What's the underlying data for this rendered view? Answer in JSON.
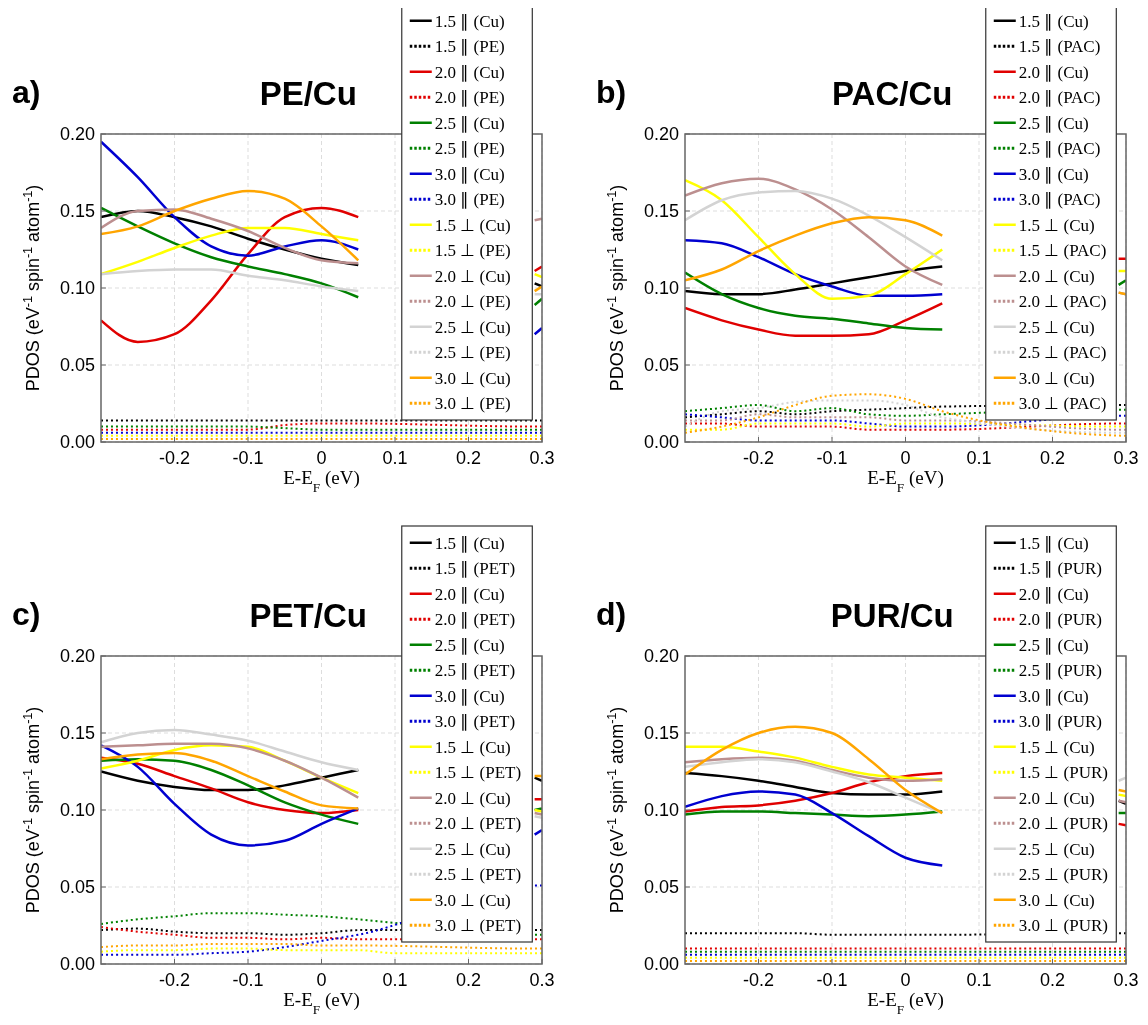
{
  "chart_data": [
    {
      "type": "line",
      "title": "PE/Cu",
      "annotations": [
        "a)"
      ],
      "xlabel": "E-E$_{F}$ (eV)",
      "ylabel": "PDOS (eV$^{-1}$ spin$^{-1}$ atom$^{-1}$)",
      "xlim": [
        -0.3,
        0.3
      ],
      "ylim": [
        0,
        0.2
      ],
      "xticks": [
        -0.2,
        -0.1,
        0,
        0.1,
        0.2,
        0.3
      ],
      "yticks": [
        {
          "value": 0,
          "label": "0.00"
        },
        {
          "value": 0.05,
          "label": "0.05"
        },
        {
          "value": 0.1,
          "label": "0.10"
        },
        {
          "value": 0.15,
          "label": "0.15"
        },
        {
          "value": 0.2,
          "label": "0.20"
        }
      ],
      "grid": true,
      "legend": "top right",
      "x": [
        -0.3,
        -0.25,
        -0.2,
        -0.15,
        -0.1,
        -0.05,
        0,
        0.05,
        0.1,
        0.29,
        0.3
      ],
      "series": [
        {
          "name": "1.5 ∥ (Cu)",
          "color": "#000000",
          "line_style": "solid",
          "values": [
            0.146,
            0.15,
            0.146,
            0.14,
            0.132,
            0.125,
            0.119,
            0.115,
            null,
            0.103,
            0.101
          ]
        },
        {
          "name": "1.5 ∥ (PE)",
          "color": "#000000",
          "line_style": "dotted",
          "x": [
            -0.3,
            -0.25,
            -0.2,
            -0.15,
            -0.1,
            -0.05,
            0,
            0.05,
            0.29,
            0.3
          ],
          "values": [
            0.014,
            0.014,
            0.014,
            0.014,
            0.014,
            0.014,
            0.014,
            0.014,
            0.014,
            0.014
          ]
        },
        {
          "name": "2.0 ∥ (Cu)",
          "color": "#e00000",
          "line_style": "solid",
          "values": [
            0.079,
            0.065,
            0.07,
            0.092,
            0.122,
            0.146,
            0.152,
            0.146,
            null,
            0.111,
            0.114
          ]
        },
        {
          "name": "2.0 ∥ (PE)",
          "color": "#e00000",
          "line_style": "dotted",
          "x": [
            -0.3,
            -0.25,
            -0.2,
            -0.15,
            -0.1,
            -0.05,
            0,
            0.05,
            0.29,
            0.3
          ],
          "values": [
            0.008,
            0.008,
            0.008,
            0.008,
            0.008,
            0.011,
            0.012,
            0.012,
            0.01,
            0.01
          ]
        },
        {
          "name": "2.5 ∥ (Cu)",
          "color": "#008000",
          "line_style": "solid",
          "values": [
            0.152,
            0.14,
            0.129,
            0.12,
            0.114,
            0.109,
            0.103,
            0.094,
            null,
            0.089,
            0.093
          ]
        },
        {
          "name": "2.5 ∥ (PE)",
          "color": "#008000",
          "line_style": "dotted",
          "x": [
            -0.3,
            -0.25,
            -0.2,
            -0.15,
            -0.1,
            -0.05,
            0,
            0.05,
            0.29,
            0.3
          ],
          "values": [
            0.01,
            0.01,
            0.01,
            0.01,
            0.01,
            0.009,
            0.008,
            0.008,
            0.008,
            0.008
          ]
        },
        {
          "name": "3.0 ∥ (Cu)",
          "color": "#0000d0",
          "line_style": "solid",
          "values": [
            0.195,
            0.172,
            0.146,
            0.127,
            0.121,
            0.127,
            0.131,
            0.125,
            null,
            0.07,
            0.074
          ]
        },
        {
          "name": "3.0 ∥ (PE)",
          "color": "#0000d0",
          "line_style": "dotted",
          "x": [
            -0.3,
            -0.25,
            -0.2,
            -0.15,
            -0.1,
            -0.05,
            0,
            0.05,
            0.29,
            0.3
          ],
          "values": [
            0.006,
            0.006,
            0.006,
            0.006,
            0.006,
            0.006,
            0.006,
            0.006,
            0.006,
            0.006
          ]
        },
        {
          "name": "1.5 ⊥ (Cu)",
          "color": "#ffff00",
          "line_style": "solid",
          "values": [
            0.109,
            0.117,
            0.126,
            0.134,
            0.139,
            0.139,
            0.135,
            0.131,
            null,
            0.109,
            0.107
          ]
        },
        {
          "name": "1.5 ⊥ (PE)",
          "color": "#ffff00",
          "line_style": "dotted",
          "x": [
            -0.3,
            -0.25,
            -0.2,
            -0.15,
            -0.1,
            -0.05,
            0,
            0.05,
            0.29,
            0.3
          ],
          "values": [
            0.004,
            0.004,
            0.004,
            0.004,
            0.004,
            0.004,
            0.004,
            0.004,
            0.004,
            0.004
          ]
        },
        {
          "name": "2.0 ⊥ (Cu)",
          "color": "#bc8f8f",
          "line_style": "solid",
          "values": [
            0.139,
            0.15,
            0.151,
            0.145,
            0.137,
            0.126,
            0.118,
            0.116,
            null,
            0.144,
            0.145
          ]
        },
        {
          "name": "2.0 ⊥ (PE)",
          "color": "#bc8f8f",
          "line_style": "dotted",
          "values": [
            null,
            null,
            null,
            null,
            null,
            null,
            null,
            null,
            null,
            null,
            null
          ]
        },
        {
          "name": "2.5 ⊥ (Cu)",
          "color": "#d3d3d3",
          "line_style": "solid",
          "values": [
            0.109,
            0.111,
            0.112,
            0.112,
            0.108,
            0.105,
            0.101,
            0.098,
            null,
            0.096,
            0.096
          ]
        },
        {
          "name": "2.5 ⊥ (PE)",
          "color": "#d3d3d3",
          "line_style": "dotted",
          "values": [
            null,
            null,
            null,
            null,
            null,
            null,
            null,
            null,
            null,
            null,
            null
          ]
        },
        {
          "name": "3.0 ⊥ (Cu)",
          "color": "#ffa500",
          "line_style": "solid",
          "values": [
            0.135,
            0.14,
            0.15,
            0.158,
            0.163,
            0.158,
            0.14,
            0.118,
            null,
            0.098,
            0.101
          ]
        },
        {
          "name": "3.0 ⊥ (PE)",
          "color": "#ffa500",
          "line_style": "dotted",
          "x": [
            -0.3,
            -0.25,
            -0.2,
            -0.15,
            -0.1,
            -0.05,
            0,
            0.05,
            0.29,
            0.3
          ],
          "values": [
            0.002,
            0.002,
            0.002,
            0.002,
            0.002,
            0.002,
            0.002,
            0.002,
            0.002,
            0.002
          ]
        }
      ]
    },
    {
      "type": "line",
      "title": "PAC/Cu",
      "annotations": [
        "b)"
      ],
      "xlabel": "E-E$_{F}$ (eV)",
      "ylabel": "PDOS (eV$^{-1}$ spin$^{-1}$ atom$^{-1}$)",
      "xlim": [
        -0.3,
        0.3
      ],
      "ylim": [
        0,
        0.2
      ],
      "xticks": [
        -0.2,
        -0.1,
        0,
        0.1,
        0.2,
        0.3
      ],
      "yticks": [
        {
          "value": 0,
          "label": "0.00"
        },
        {
          "value": 0.05,
          "label": "0.05"
        },
        {
          "value": 0.1,
          "label": "0.10"
        },
        {
          "value": 0.15,
          "label": "0.15"
        },
        {
          "value": 0.2,
          "label": "0.20"
        }
      ],
      "grid": true,
      "legend": "top right",
      "x": [
        -0.3,
        -0.25,
        -0.2,
        -0.15,
        -0.1,
        -0.05,
        0,
        0.05,
        0.1,
        0.29,
        0.3
      ],
      "series": [
        {
          "name": "1.5 ∥ (Cu)",
          "color": "#000000",
          "line_style": "solid",
          "values": [
            0.098,
            0.096,
            0.096,
            0.099,
            0.103,
            0.107,
            0.111,
            0.114,
            null,
            null,
            null
          ]
        },
        {
          "name": "1.5 ∥ (PAC)",
          "color": "#000000",
          "line_style": "dotted",
          "x": [
            -0.3,
            -0.25,
            -0.2,
            -0.15,
            -0.1,
            -0.05,
            0,
            0.05,
            0.29,
            0.3
          ],
          "values": [
            0.016,
            0.018,
            0.02,
            0.018,
            0.02,
            0.021,
            0.022,
            0.023,
            0.024,
            0.024
          ]
        },
        {
          "name": "2.0 ∥ (Cu)",
          "color": "#e00000",
          "line_style": "solid",
          "values": [
            0.087,
            0.079,
            0.073,
            0.069,
            0.069,
            0.07,
            0.079,
            0.09,
            null,
            0.119,
            0.119
          ]
        },
        {
          "name": "2.0 ∥ (PAC)",
          "color": "#e00000",
          "line_style": "dotted",
          "x": [
            -0.3,
            -0.25,
            -0.2,
            -0.15,
            -0.1,
            -0.05,
            0,
            0.05,
            0.29,
            0.3
          ],
          "values": [
            0.012,
            0.012,
            0.01,
            0.01,
            0.01,
            0.008,
            0.008,
            0.008,
            0.012,
            0.012
          ]
        },
        {
          "name": "2.5 ∥ (Cu)",
          "color": "#008000",
          "line_style": "solid",
          "values": [
            0.11,
            0.096,
            0.087,
            0.082,
            0.08,
            0.077,
            0.074,
            0.073,
            null,
            0.102,
            0.105
          ]
        },
        {
          "name": "2.5 ∥ (PAC)",
          "color": "#008000",
          "line_style": "dotted",
          "x": [
            -0.3,
            -0.25,
            -0.2,
            -0.15,
            -0.1,
            -0.05,
            0,
            0.05,
            0.29,
            0.3
          ],
          "values": [
            0.02,
            0.022,
            0.024,
            0.02,
            0.022,
            0.018,
            0.017,
            0.018,
            0.021,
            0.021
          ]
        },
        {
          "name": "3.0 ∥ (Cu)",
          "color": "#0000d0",
          "line_style": "solid",
          "values": [
            0.131,
            0.129,
            0.12,
            0.109,
            0.101,
            0.095,
            0.095,
            0.096,
            null,
            null,
            null
          ]
        },
        {
          "name": "3.0 ∥ (PAC)",
          "color": "#0000d0",
          "line_style": "dotted",
          "x": [
            -0.3,
            -0.25,
            -0.2,
            -0.15,
            -0.1,
            -0.05,
            0,
            0.05,
            0.29,
            0.3
          ],
          "values": [
            0.018,
            0.016,
            0.014,
            0.014,
            0.014,
            0.012,
            0.01,
            0.01,
            0.017,
            0.017
          ]
        },
        {
          "name": "1.5 ⊥ (Cu)",
          "color": "#ffff00",
          "line_style": "solid",
          "values": [
            0.17,
            0.157,
            0.133,
            0.109,
            0.093,
            0.095,
            0.109,
            0.125,
            null,
            0.111,
            0.111
          ]
        },
        {
          "name": "1.5 ⊥ (PAC)",
          "color": "#ffff00",
          "line_style": "dotted",
          "x": [
            -0.3,
            -0.25,
            -0.2,
            -0.15,
            -0.1,
            -0.05,
            0,
            0.05,
            0.29,
            0.3
          ],
          "values": [
            0.008,
            0.008,
            0.012,
            0.012,
            0.012,
            0.01,
            0.012,
            0.012,
            0.01,
            0.01
          ]
        },
        {
          "name": "2.0 ⊥ (Cu)",
          "color": "#bc8f8f",
          "line_style": "solid",
          "values": [
            0.16,
            0.168,
            0.171,
            0.164,
            0.151,
            0.133,
            0.114,
            0.102,
            null,
            0.097,
            0.096
          ]
        },
        {
          "name": "2.0 ⊥ (PAC)",
          "color": "#bc8f8f",
          "line_style": "dotted",
          "x": [
            -0.3,
            -0.25,
            -0.2,
            -0.15,
            -0.1,
            -0.05,
            0,
            0.05,
            0.29,
            0.3
          ],
          "values": [
            0.014,
            0.014,
            0.018,
            0.016,
            0.016,
            0.016,
            0.014,
            0.014,
            0.008,
            0.008
          ]
        },
        {
          "name": "2.5 ⊥ (Cu)",
          "color": "#d3d3d3",
          "line_style": "solid",
          "values": [
            0.144,
            0.157,
            0.162,
            0.163,
            0.158,
            0.147,
            0.133,
            0.118,
            null,
            null,
            null
          ]
        },
        {
          "name": "2.5 ⊥ (PAC)",
          "color": "#d3d3d3",
          "line_style": "dotted",
          "x": [
            -0.3,
            -0.25,
            -0.2,
            -0.15,
            -0.1,
            -0.05,
            0,
            0.05,
            0.29,
            0.3
          ],
          "values": [
            0.01,
            0.02,
            0.022,
            0.026,
            0.027,
            0.027,
            0.024,
            0.016,
            0.006,
            0.006
          ]
        },
        {
          "name": "3.0 ⊥ (Cu)",
          "color": "#ffa500",
          "line_style": "solid",
          "values": [
            0.105,
            0.112,
            0.124,
            0.134,
            0.142,
            0.146,
            0.144,
            0.134,
            null,
            0.097,
            0.096
          ]
        },
        {
          "name": "3.0 ⊥ (PAC)",
          "color": "#ffa500",
          "line_style": "dotted",
          "x": [
            -0.3,
            -0.25,
            -0.2,
            -0.15,
            -0.1,
            -0.05,
            0,
            0.05,
            0.2,
            0.25,
            0.3
          ],
          "values": [
            0.006,
            0.01,
            0.016,
            0.024,
            0.03,
            0.031,
            0.028,
            0.02,
            0.007,
            0.005,
            0.004
          ]
        }
      ]
    },
    {
      "type": "line",
      "title": "PET/Cu",
      "annotations": [
        "c)"
      ],
      "xlabel": "E-E$_{F}$ (eV)",
      "ylabel": "PDOS (eV$^{-1}$ spin$^{-1}$ atom$^{-1}$)",
      "xlim": [
        -0.3,
        0.3
      ],
      "ylim": [
        0,
        0.2
      ],
      "xticks": [
        -0.2,
        -0.1,
        0,
        0.1,
        0.2,
        0.3
      ],
      "yticks": [
        {
          "value": 0,
          "label": "0.00"
        },
        {
          "value": 0.05,
          "label": "0.05"
        },
        {
          "value": 0.1,
          "label": "0.10"
        },
        {
          "value": 0.15,
          "label": "0.15"
        },
        {
          "value": 0.2,
          "label": "0.20"
        }
      ],
      "grid": true,
      "legend": "top right",
      "x": [
        -0.3,
        -0.25,
        -0.2,
        -0.15,
        -0.1,
        -0.05,
        0,
        0.05,
        0.1,
        0.29,
        0.3
      ],
      "series": [
        {
          "name": "1.5 ∥ (Cu)",
          "color": "#000000",
          "line_style": "solid",
          "values": [
            0.125,
            0.119,
            0.115,
            0.113,
            0.113,
            0.116,
            0.121,
            0.126,
            null,
            0.121,
            0.119
          ]
        },
        {
          "name": "1.5 ∥ (PET)",
          "color": "#000000",
          "line_style": "dotted",
          "x": [
            -0.3,
            -0.25,
            -0.2,
            -0.15,
            -0.1,
            -0.05,
            0,
            0.05,
            0.29,
            0.3
          ],
          "values": [
            0.022,
            0.023,
            0.021,
            0.02,
            0.02,
            0.019,
            0.02,
            0.022,
            0.022,
            0.022
          ]
        },
        {
          "name": "2.0 ∥ (Cu)",
          "color": "#e00000",
          "line_style": "solid",
          "values": [
            0.134,
            0.13,
            0.122,
            0.114,
            0.105,
            0.1,
            0.098,
            0.1,
            null,
            0.107,
            0.107
          ]
        },
        {
          "name": "2.0 ∥ (PET)",
          "color": "#e00000",
          "line_style": "dotted",
          "x": [
            -0.3,
            -0.25,
            -0.2,
            -0.15,
            -0.1,
            -0.05,
            0,
            0.05,
            0.29,
            0.3
          ],
          "values": [
            0.024,
            0.021,
            0.019,
            0.017,
            0.017,
            0.016,
            0.017,
            0.016,
            0.016,
            0.016
          ]
        },
        {
          "name": "2.5 ∥ (Cu)",
          "color": "#008000",
          "line_style": "solid",
          "values": [
            0.132,
            0.133,
            0.132,
            0.126,
            0.116,
            0.105,
            0.097,
            0.091,
            null,
            0.1,
            0.101
          ]
        },
        {
          "name": "2.5 ∥ (PET)",
          "color": "#008000",
          "line_style": "dotted",
          "x": [
            -0.3,
            -0.25,
            -0.2,
            -0.15,
            -0.1,
            -0.05,
            0,
            0.05,
            0.29,
            0.3
          ],
          "values": [
            0.026,
            0.029,
            0.031,
            0.033,
            0.033,
            0.032,
            0.031,
            0.029,
            0.019,
            0.019
          ]
        },
        {
          "name": "3.0 ∥ (Cu)",
          "color": "#0000d0",
          "line_style": "solid",
          "values": [
            0.142,
            0.128,
            0.104,
            0.084,
            0.077,
            0.08,
            0.091,
            0.101,
            null,
            0.084,
            0.087
          ]
        },
        {
          "name": "3.0 ∥ (PET)",
          "color": "#0000d0",
          "line_style": "dotted",
          "x": [
            -0.3,
            -0.25,
            -0.2,
            -0.15,
            -0.1,
            -0.05,
            0,
            0.05,
            0.29,
            0.3
          ],
          "values": [
            0.006,
            0.006,
            0.006,
            0.007,
            0.008,
            0.011,
            0.015,
            0.019,
            0.051,
            0.051
          ]
        },
        {
          "name": "1.5 ⊥ (Cu)",
          "color": "#ffff00",
          "line_style": "solid",
          "values": [
            0.127,
            0.132,
            0.139,
            0.142,
            0.141,
            0.132,
            0.121,
            0.111,
            null,
            0.1,
            0.099
          ]
        },
        {
          "name": "1.5 ⊥ (PET)",
          "color": "#ffff00",
          "line_style": "dotted",
          "x": [
            -0.3,
            -0.25,
            -0.2,
            -0.15,
            -0.1,
            -0.05,
            0,
            0.05,
            0.1,
            0.15,
            0.2,
            0.25,
            0.3
          ],
          "values": [
            0.008,
            0.009,
            0.009,
            0.01,
            0.01,
            0.009,
            0.009,
            0.009,
            0.007,
            0.007,
            0.007,
            0.007,
            0.007
          ]
        },
        {
          "name": "2.0 ⊥ (Cu)",
          "color": "#bc8f8f",
          "line_style": "solid",
          "values": [
            0.141,
            0.142,
            0.143,
            0.143,
            0.14,
            0.132,
            0.121,
            0.108,
            null,
            0.098,
            0.097
          ]
        },
        {
          "name": "2.0 ⊥ (PET)",
          "color": "#bc8f8f",
          "line_style": "dotted",
          "values": [
            null,
            null,
            null,
            null,
            null,
            null,
            null,
            null,
            null,
            null,
            null
          ]
        },
        {
          "name": "2.5 ⊥ (Cu)",
          "color": "#d3d3d3",
          "line_style": "solid",
          "values": [
            0.144,
            0.15,
            0.152,
            0.149,
            0.145,
            0.138,
            0.131,
            0.126,
            null,
            0.096,
            0.095
          ]
        },
        {
          "name": "2.5 ⊥ (PET)",
          "color": "#d3d3d3",
          "line_style": "dotted",
          "values": [
            null,
            null,
            null,
            null,
            null,
            null,
            null,
            null,
            null,
            null,
            null
          ]
        },
        {
          "name": "3.0 ⊥ (Cu)",
          "color": "#ffa500",
          "line_style": "solid",
          "values": [
            0.133,
            0.136,
            0.137,
            0.132,
            0.122,
            0.112,
            0.103,
            0.101,
            null,
            0.122,
            0.122
          ]
        },
        {
          "name": "3.0 ⊥ (PET)",
          "color": "#ffa500",
          "line_style": "dotted",
          "x": [
            -0.3,
            -0.25,
            -0.2,
            -0.15,
            -0.1,
            -0.05,
            0,
            0.05,
            0.29,
            0.3
          ],
          "values": [
            0.011,
            0.012,
            0.012,
            0.013,
            0.013,
            0.013,
            0.012,
            0.012,
            0.01,
            0.01
          ]
        }
      ]
    },
    {
      "type": "line",
      "title": "PUR/Cu",
      "annotations": [
        "d)"
      ],
      "xlabel": "E-E$_{F}$ (eV)",
      "ylabel": "PDOS (eV$^{-1}$ spin$^{-1}$ atom$^{-1}$)",
      "xlim": [
        -0.3,
        0.3
      ],
      "ylim": [
        0,
        0.2
      ],
      "xticks": [
        -0.2,
        -0.1,
        0,
        0.1,
        0.2,
        0.3
      ],
      "yticks": [
        {
          "value": 0,
          "label": "0.00"
        },
        {
          "value": 0.05,
          "label": "0.05"
        },
        {
          "value": 0.1,
          "label": "0.10"
        },
        {
          "value": 0.15,
          "label": "0.15"
        },
        {
          "value": 0.2,
          "label": "0.20"
        }
      ],
      "grid": true,
      "legend": "top right",
      "x": [
        -0.3,
        -0.25,
        -0.2,
        -0.15,
        -0.1,
        -0.05,
        0,
        0.05,
        0.1,
        0.29,
        0.3
      ],
      "series": [
        {
          "name": "1.5 ∥ (Cu)",
          "color": "#000000",
          "line_style": "solid",
          "values": [
            0.124,
            0.122,
            0.119,
            0.115,
            0.111,
            0.11,
            0.11,
            0.112,
            null,
            0.106,
            0.104
          ]
        },
        {
          "name": "1.5 ∥ (PUR)",
          "color": "#000000",
          "line_style": "dotted",
          "x": [
            -0.3,
            -0.25,
            -0.2,
            -0.15,
            -0.1,
            -0.05,
            0,
            0.05,
            0.29,
            0.3
          ],
          "values": [
            0.02,
            0.02,
            0.02,
            0.02,
            0.019,
            0.019,
            0.019,
            0.019,
            0.02,
            0.02
          ]
        },
        {
          "name": "2.0 ∥ (Cu)",
          "color": "#e00000",
          "line_style": "solid",
          "values": [
            0.099,
            0.102,
            0.103,
            0.106,
            0.111,
            0.118,
            0.122,
            0.124,
            null,
            0.091,
            0.09
          ]
        },
        {
          "name": "2.0 ∥ (PUR)",
          "color": "#e00000",
          "line_style": "dotted",
          "x": [
            -0.3,
            -0.25,
            -0.2,
            -0.15,
            -0.1,
            -0.05,
            0,
            0.05,
            0.29,
            0.3
          ],
          "values": [
            0.01,
            0.01,
            0.01,
            0.01,
            0.01,
            0.01,
            0.01,
            0.01,
            0.01,
            0.01
          ]
        },
        {
          "name": "2.5 ∥ (Cu)",
          "color": "#008000",
          "line_style": "solid",
          "values": [
            0.097,
            0.099,
            0.099,
            0.098,
            0.097,
            0.096,
            0.097,
            0.099,
            null,
            0.098,
            0.098
          ]
        },
        {
          "name": "2.5 ∥ (PUR)",
          "color": "#008000",
          "line_style": "dotted",
          "x": [
            -0.3,
            -0.25,
            -0.2,
            -0.15,
            -0.1,
            -0.05,
            0,
            0.05,
            0.29,
            0.3
          ],
          "values": [
            0.008,
            0.008,
            0.008,
            0.008,
            0.008,
            0.008,
            0.008,
            0.008,
            0.008,
            0.008
          ]
        },
        {
          "name": "3.0 ∥ (Cu)",
          "color": "#0000d0",
          "line_style": "solid",
          "values": [
            0.102,
            0.109,
            0.112,
            0.11,
            0.098,
            0.083,
            0.069,
            0.064,
            null,
            null,
            null
          ]
        },
        {
          "name": "3.0 ∥ (PUR)",
          "color": "#0000d0",
          "line_style": "dotted",
          "x": [
            -0.3,
            -0.25,
            -0.2,
            -0.15,
            -0.1,
            -0.05,
            0,
            0.05,
            0.29,
            0.3
          ],
          "values": [
            0.006,
            0.006,
            0.006,
            0.006,
            0.006,
            0.006,
            0.006,
            0.006,
            0.006,
            0.006
          ]
        },
        {
          "name": "1.5 ⊥ (Cu)",
          "color": "#ffff00",
          "line_style": "solid",
          "values": [
            0.141,
            0.141,
            0.138,
            0.134,
            0.128,
            0.123,
            0.121,
            0.119,
            null,
            0.11,
            0.109
          ]
        },
        {
          "name": "1.5 ⊥ (PUR)",
          "color": "#ffff00",
          "line_style": "dotted",
          "x": [
            -0.3,
            -0.25,
            -0.2,
            -0.15,
            -0.1,
            -0.05,
            0,
            0.05,
            0.29,
            0.3
          ],
          "values": [
            0.004,
            0.004,
            0.004,
            0.004,
            0.004,
            0.004,
            0.004,
            0.004,
            0.004,
            0.004
          ]
        },
        {
          "name": "2.0 ⊥ (Cu)",
          "color": "#bc8f8f",
          "line_style": "solid",
          "values": [
            0.131,
            0.133,
            0.134,
            0.132,
            0.126,
            0.121,
            0.119,
            0.12,
            null,
            0.106,
            0.105
          ]
        },
        {
          "name": "2.0 ⊥ (PUR)",
          "color": "#bc8f8f",
          "line_style": "dotted",
          "values": [
            null,
            null,
            null,
            null,
            null,
            null,
            null,
            null,
            null,
            null,
            null
          ]
        },
        {
          "name": "2.5 ⊥ (Cu)",
          "color": "#d3d3d3",
          "line_style": "solid",
          "values": [
            0.128,
            0.131,
            0.133,
            0.131,
            0.125,
            0.118,
            0.108,
            0.098,
            null,
            0.119,
            0.121
          ]
        },
        {
          "name": "2.5 ⊥ (PUR)",
          "color": "#d3d3d3",
          "line_style": "dotted",
          "values": [
            null,
            null,
            null,
            null,
            null,
            null,
            null,
            null,
            null,
            null,
            null
          ]
        },
        {
          "name": "3.0 ⊥ (Cu)",
          "color": "#ffa500",
          "line_style": "solid",
          "values": [
            0.123,
            0.139,
            0.15,
            0.154,
            0.15,
            0.133,
            0.113,
            0.098,
            null,
            0.113,
            0.112
          ]
        },
        {
          "name": "3.0 ⊥ (PUR)",
          "color": "#ffa500",
          "line_style": "dotted",
          "x": [
            -0.3,
            -0.25,
            -0.2,
            -0.15,
            -0.1,
            -0.05,
            0,
            0.05,
            0.29,
            0.3
          ],
          "values": [
            0.002,
            0.002,
            0.002,
            0.002,
            0.002,
            0.002,
            0.002,
            0.002,
            0.002,
            0.002
          ]
        }
      ]
    }
  ]
}
